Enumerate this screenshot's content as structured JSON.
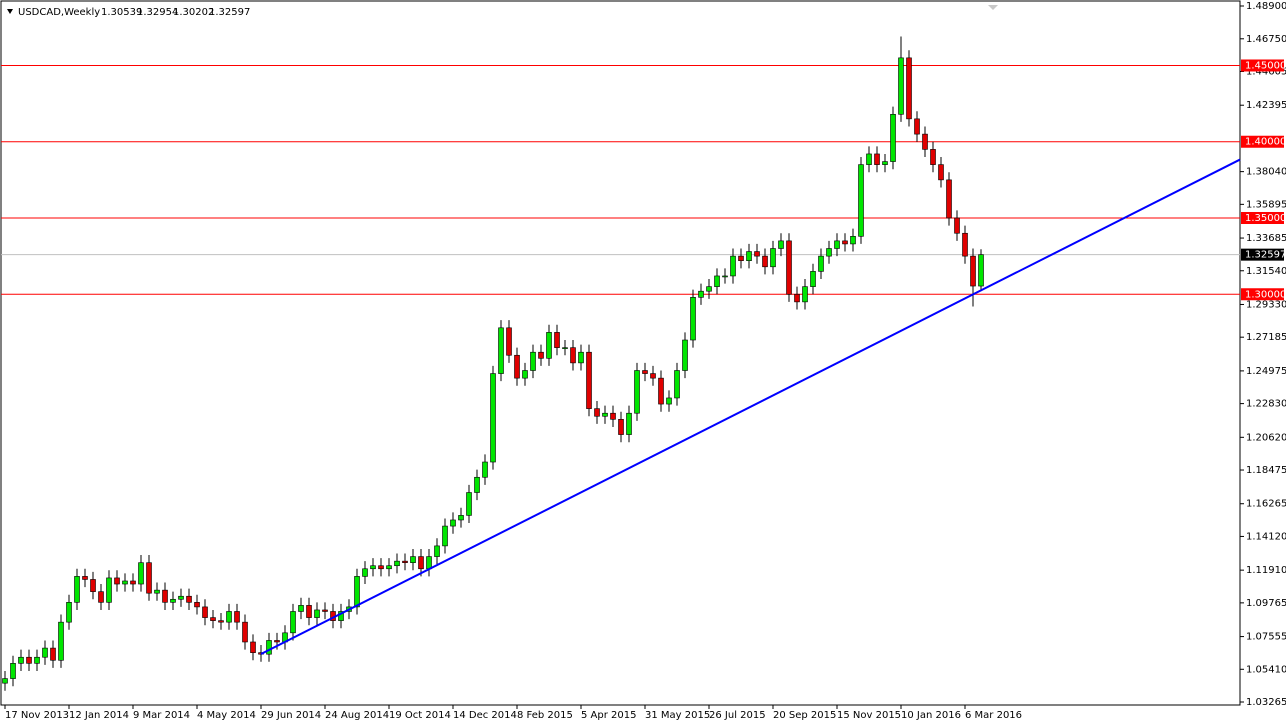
{
  "chart_data": {
    "type": "candlestick",
    "title": "USDCAD,Weekly",
    "categories": [
      "17 Nov 2013",
      null,
      null,
      null,
      null,
      null,
      null,
      null,
      "12 Jan 2014",
      null,
      null,
      null,
      null,
      null,
      null,
      null,
      "9 Mar 2014",
      null,
      null,
      null,
      null,
      null,
      null,
      null,
      "4 May 2014",
      null,
      null,
      null,
      null,
      null,
      null,
      null,
      "29 Jun 2014",
      null,
      null,
      null,
      null,
      null,
      null,
      null,
      "24 Aug 2014",
      null,
      null,
      null,
      null,
      null,
      null,
      null,
      "19 Oct 2014",
      null,
      null,
      null,
      null,
      null,
      null,
      null,
      "14 Dec 2014",
      null,
      null,
      null,
      null,
      null,
      null,
      null,
      "8 Feb 2015",
      null,
      null,
      null,
      null,
      null,
      null,
      null,
      "5 Apr 2015",
      null,
      null,
      null,
      null,
      null,
      null,
      null,
      "31 May 2015",
      null,
      null,
      null,
      null,
      null,
      null,
      null,
      "26 Jul 2015",
      null,
      null,
      null,
      null,
      null,
      null,
      null,
      "20 Sep 2015",
      null,
      null,
      null,
      null,
      null,
      null,
      null,
      "15 Nov 2015",
      null,
      null,
      null,
      null,
      null,
      null,
      null,
      "10 Jan 2016",
      null,
      null,
      null,
      null,
      null,
      null,
      null,
      "6 Mar 2016",
      null,
      null
    ],
    "open": [
      1.045,
      1.048,
      1.058,
      1.062,
      1.058,
      1.062,
      1.068,
      1.06,
      1.085,
      1.098,
      1.115,
      1.113,
      1.105,
      1.098,
      1.114,
      1.11,
      1.112,
      1.11,
      1.124,
      1.104,
      1.106,
      1.098,
      1.1,
      1.102,
      1.098,
      1.095,
      1.088,
      1.086,
      1.085,
      1.092,
      1.085,
      1.072,
      1.065,
      1.064,
      1.073,
      1.072,
      1.078,
      1.092,
      1.096,
      1.088,
      1.093,
      1.092,
      1.086,
      1.092,
      1.095,
      1.115,
      1.12,
      1.122,
      1.12,
      1.122,
      1.125,
      1.124,
      1.128,
      1.12,
      1.128,
      1.135,
      1.148,
      1.152,
      1.155,
      1.17,
      1.18,
      1.19,
      1.248,
      1.278,
      1.26,
      1.245,
      1.25,
      1.262,
      1.258,
      1.275,
      1.265,
      1.265,
      1.255,
      1.262,
      1.225,
      1.22,
      1.222,
      1.218,
      1.208,
      1.222,
      1.25,
      1.248,
      1.245,
      1.228,
      1.232,
      1.25,
      1.27,
      1.298,
      1.302,
      1.305,
      1.312,
      1.312,
      1.325,
      1.322,
      1.328,
      1.325,
      1.318,
      1.33,
      1.335,
      1.3,
      1.295,
      1.305,
      1.315,
      1.325,
      1.33,
      1.335,
      1.333,
      1.338,
      1.385,
      1.392,
      1.385,
      1.387,
      1.418,
      1.455,
      1.415,
      1.405,
      1.395,
      1.385,
      1.375,
      1.35,
      1.34,
      1.325,
      1.30539
    ],
    "high": [
      1.053,
      1.063,
      1.067,
      1.067,
      1.067,
      1.073,
      1.073,
      1.09,
      1.103,
      1.12,
      1.12,
      1.118,
      1.11,
      1.119,
      1.119,
      1.117,
      1.117,
      1.129,
      1.129,
      1.111,
      1.111,
      1.105,
      1.107,
      1.107,
      1.103,
      1.1,
      1.093,
      1.091,
      1.097,
      1.097,
      1.09,
      1.077,
      1.07,
      1.078,
      1.078,
      1.083,
      1.097,
      1.101,
      1.101,
      1.098,
      1.098,
      1.097,
      1.097,
      1.1,
      1.12,
      1.125,
      1.127,
      1.127,
      1.127,
      1.13,
      1.13,
      1.133,
      1.133,
      1.133,
      1.14,
      1.153,
      1.157,
      1.16,
      1.175,
      1.185,
      1.195,
      1.253,
      1.283,
      1.283,
      1.265,
      1.255,
      1.267,
      1.267,
      1.28,
      1.28,
      1.27,
      1.27,
      1.267,
      1.267,
      1.23,
      1.227,
      1.227,
      1.223,
      1.227,
      1.255,
      1.255,
      1.253,
      1.25,
      1.237,
      1.255,
      1.275,
      1.303,
      1.307,
      1.31,
      1.317,
      1.317,
      1.33,
      1.33,
      1.333,
      1.333,
      1.33,
      1.335,
      1.34,
      1.34,
      1.305,
      1.31,
      1.32,
      1.33,
      1.335,
      1.34,
      1.34,
      1.343,
      1.39,
      1.397,
      1.397,
      1.392,
      1.423,
      1.469,
      1.46,
      1.42,
      1.41,
      1.4,
      1.39,
      1.38,
      1.355,
      1.345,
      1.33,
      1.32954
    ],
    "low": [
      1.04,
      1.043,
      1.053,
      1.053,
      1.053,
      1.057,
      1.055,
      1.055,
      1.08,
      1.093,
      1.108,
      1.1,
      1.093,
      1.093,
      1.105,
      1.105,
      1.105,
      1.105,
      1.099,
      1.099,
      1.093,
      1.093,
      1.095,
      1.093,
      1.09,
      1.083,
      1.081,
      1.08,
      1.08,
      1.08,
      1.067,
      1.06,
      1.059,
      1.059,
      1.067,
      1.067,
      1.073,
      1.087,
      1.083,
      1.083,
      1.087,
      1.081,
      1.081,
      1.087,
      1.09,
      1.11,
      1.115,
      1.115,
      1.115,
      1.117,
      1.119,
      1.119,
      1.115,
      1.115,
      1.123,
      1.13,
      1.143,
      1.147,
      1.15,
      1.165,
      1.175,
      1.185,
      1.243,
      1.255,
      1.24,
      1.24,
      1.245,
      1.253,
      1.253,
      1.26,
      1.26,
      1.25,
      1.25,
      1.22,
      1.215,
      1.215,
      1.213,
      1.203,
      1.203,
      1.217,
      1.243,
      1.24,
      1.223,
      1.223,
      1.227,
      1.245,
      1.265,
      1.293,
      1.297,
      1.3,
      1.307,
      1.307,
      1.317,
      1.317,
      1.32,
      1.313,
      1.313,
      1.325,
      1.295,
      1.29,
      1.29,
      1.3,
      1.31,
      1.32,
      1.325,
      1.328,
      1.328,
      1.333,
      1.38,
      1.38,
      1.38,
      1.382,
      1.413,
      1.41,
      1.4,
      1.39,
      1.38,
      1.37,
      1.345,
      1.335,
      1.32,
      1.292,
      1.30202
    ],
    "close": [
      1.048,
      1.058,
      1.062,
      1.058,
      1.062,
      1.068,
      1.06,
      1.085,
      1.098,
      1.115,
      1.113,
      1.105,
      1.098,
      1.114,
      1.11,
      1.112,
      1.11,
      1.124,
      1.104,
      1.106,
      1.098,
      1.1,
      1.102,
      1.098,
      1.095,
      1.088,
      1.086,
      1.085,
      1.092,
      1.085,
      1.072,
      1.065,
      1.064,
      1.073,
      1.072,
      1.078,
      1.092,
      1.096,
      1.088,
      1.093,
      1.092,
      1.086,
      1.092,
      1.095,
      1.115,
      1.12,
      1.122,
      1.12,
      1.122,
      1.125,
      1.124,
      1.128,
      1.12,
      1.128,
      1.135,
      1.148,
      1.152,
      1.155,
      1.17,
      1.18,
      1.19,
      1.248,
      1.278,
      1.26,
      1.245,
      1.25,
      1.262,
      1.258,
      1.275,
      1.265,
      1.265,
      1.255,
      1.262,
      1.225,
      1.22,
      1.222,
      1.218,
      1.208,
      1.222,
      1.25,
      1.248,
      1.245,
      1.228,
      1.232,
      1.25,
      1.27,
      1.298,
      1.302,
      1.305,
      1.312,
      1.312,
      1.325,
      1.322,
      1.328,
      1.325,
      1.318,
      1.33,
      1.335,
      1.3,
      1.295,
      1.305,
      1.315,
      1.325,
      1.33,
      1.335,
      1.333,
      1.338,
      1.385,
      1.392,
      1.385,
      1.387,
      1.418,
      1.455,
      1.415,
      1.405,
      1.395,
      1.385,
      1.375,
      1.35,
      1.34,
      1.325,
      1.30539,
      1.32597
    ],
    "up_color": "#00e600",
    "down_color": "#e00000",
    "ylim": [
      1.03068,
      1.49097
    ],
    "yticks": [
      {
        "value": 1.489,
        "label": "1.48900"
      },
      {
        "value": 1.4675,
        "label": "1.46750"
      },
      {
        "value": 1.44605,
        "label": "1.44605"
      },
      {
        "value": 1.42395,
        "label": "1.42395"
      },
      {
        "value": 1.3804,
        "label": "1.38040"
      },
      {
        "value": 1.35895,
        "label": "1.35895"
      },
      {
        "value": 1.33685,
        "label": "1.33685"
      },
      {
        "value": 1.3154,
        "label": "1.31540"
      },
      {
        "value": 1.2933,
        "label": "1.29330"
      },
      {
        "value": 1.27185,
        "label": "1.27185"
      },
      {
        "value": 1.24975,
        "label": "1.24975"
      },
      {
        "value": 1.2283,
        "label": "1.22830"
      },
      {
        "value": 1.2062,
        "label": "1.20620"
      },
      {
        "value": 1.18475,
        "label": "1.18475"
      },
      {
        "value": 1.16265,
        "label": "1.16265"
      },
      {
        "value": 1.1412,
        "label": "1.14120"
      },
      {
        "value": 1.1191,
        "label": "1.11910"
      },
      {
        "value": 1.09765,
        "label": "1.09765"
      },
      {
        "value": 1.07555,
        "label": "1.07555"
      },
      {
        "value": 1.0541,
        "label": "1.05410"
      },
      {
        "value": 1.03265,
        "label": "1.03265"
      }
    ],
    "levels": [
      {
        "value": 1.45,
        "label": "1.45000"
      },
      {
        "value": 1.4,
        "label": "1.40000"
      },
      {
        "value": 1.35,
        "label": "1.35000"
      },
      {
        "value": 1.3,
        "label": "1.30000"
      }
    ],
    "level_color": "#ff0000",
    "price_line_color": "#c0c0c0",
    "trendline": {
      "color": "#0000ff",
      "x": [
        32,
        121
      ],
      "values": [
        1.0641,
        1.2999
      ]
    }
  }
}
